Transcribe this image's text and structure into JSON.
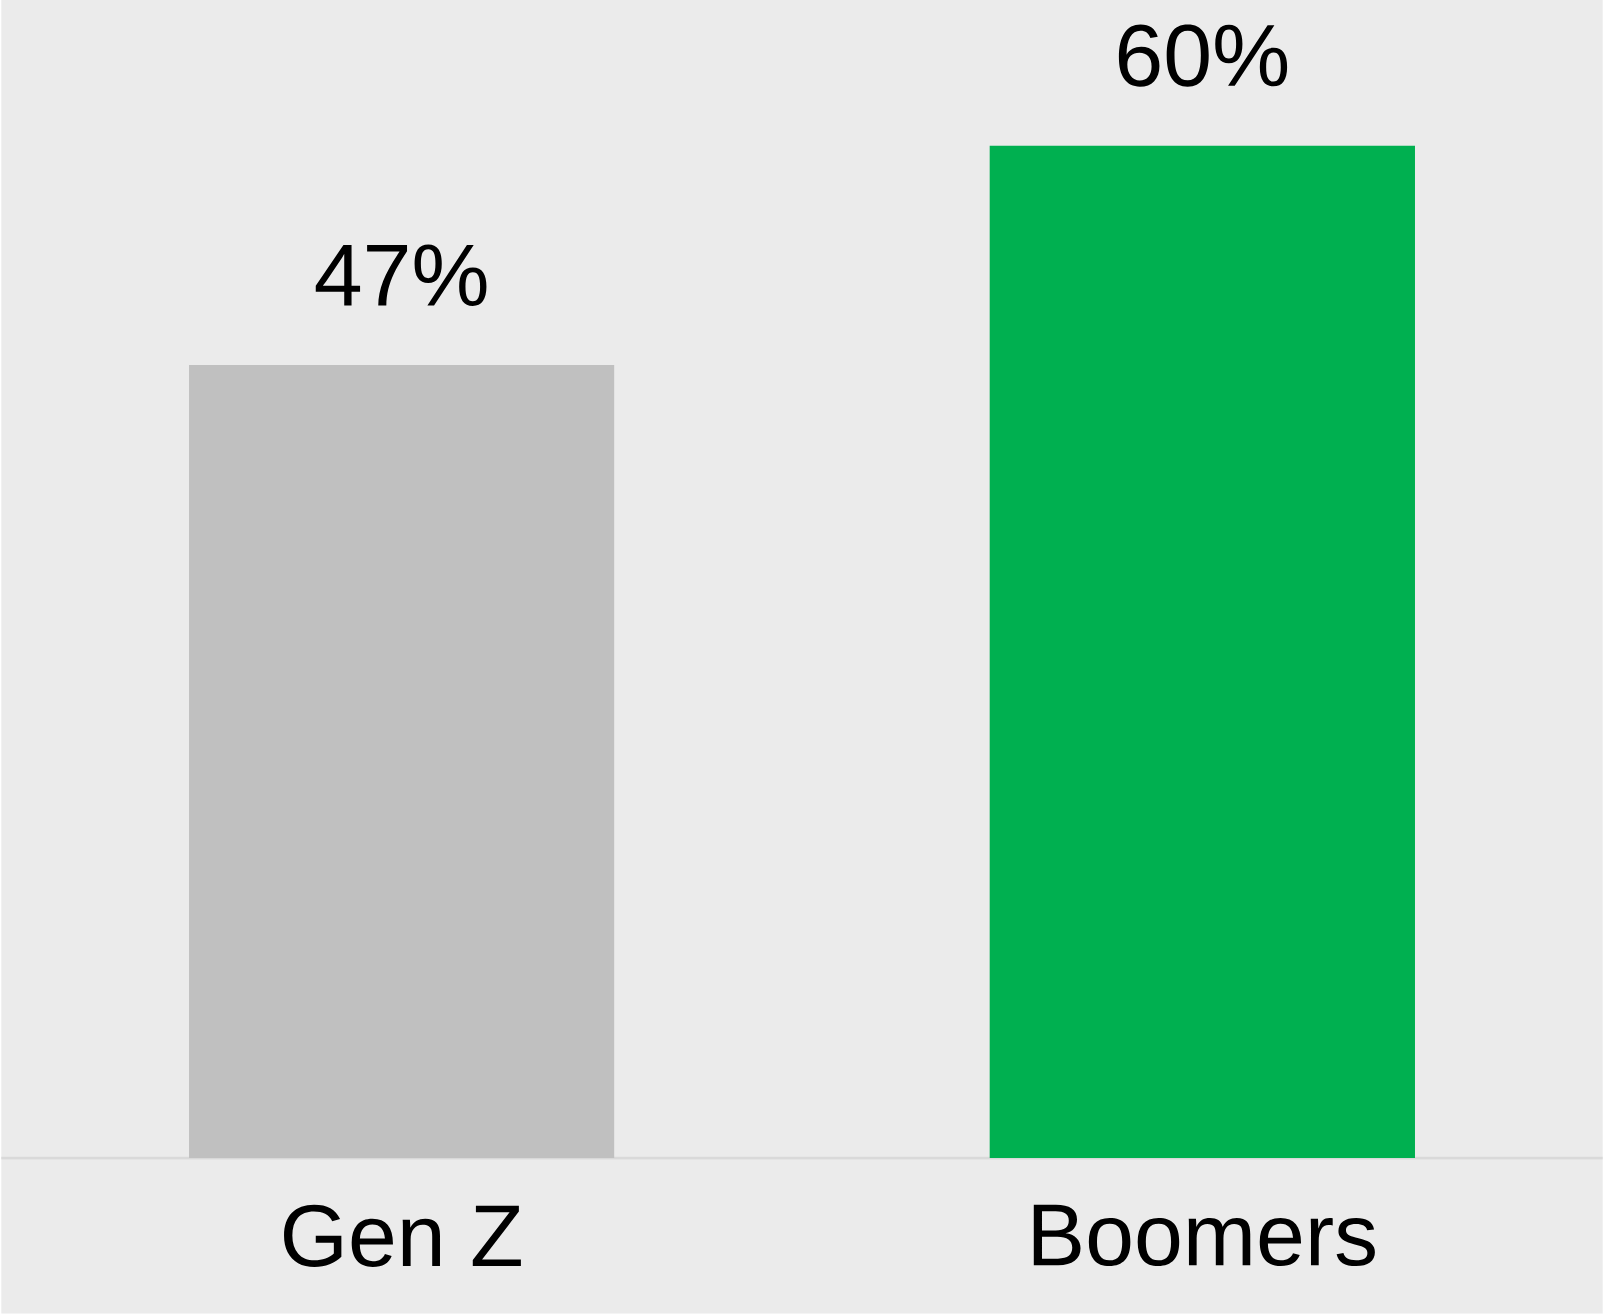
{
  "chart_data": {
    "type": "bar",
    "categories": [
      "Gen Z",
      "Boomers"
    ],
    "values": [
      47,
      60
    ],
    "colors": [
      "#c0c0c0",
      "#00b050"
    ],
    "value_labels": [
      "47%",
      "60%"
    ]
  }
}
